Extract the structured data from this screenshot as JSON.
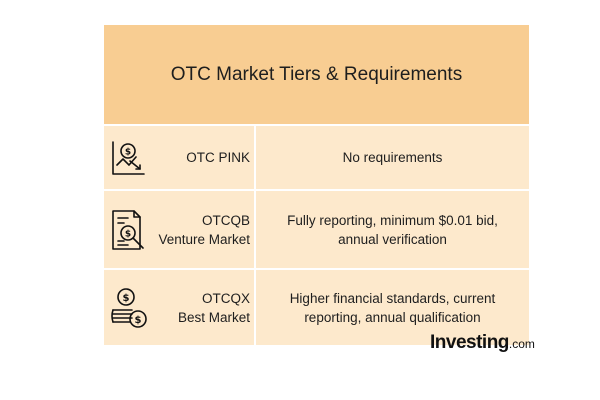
{
  "title": "OTC Market Tiers & Requirements",
  "tiers": [
    {
      "name_line1": "OTC PINK",
      "name_line2": "",
      "icon": "chart-decline-icon",
      "requirements": "No requirements"
    },
    {
      "name_line1": "OTCQB",
      "name_line2": "Venture Market",
      "icon": "document-search-icon",
      "requirements": "Fully reporting, minimum $0.01 bid, annual verification"
    },
    {
      "name_line1": "OTCQX",
      "name_line2": "Best Market",
      "icon": "coins-icon",
      "requirements": "Higher financial standards, current reporting, annual qualification"
    }
  ],
  "brand": {
    "name": "Investing",
    "suffix": ".com"
  },
  "colors": {
    "header_bg": "#f8cd92",
    "row_bg": "#fde9cc"
  }
}
